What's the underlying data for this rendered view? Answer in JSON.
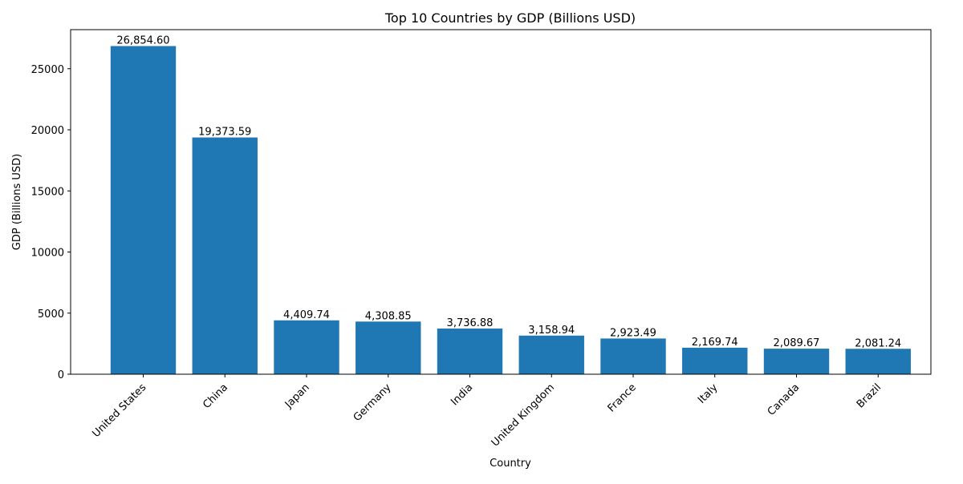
{
  "chart_data": {
    "type": "bar",
    "title": "Top 10 Countries by GDP (Billions USD)",
    "xlabel": "Country",
    "ylabel": "GDP (Billions USD)",
    "categories": [
      "United States",
      "China",
      "Japan",
      "Germany",
      "India",
      "United Kingdom",
      "France",
      "Italy",
      "Canada",
      "Brazil"
    ],
    "values": [
      26854.6,
      19373.59,
      4409.74,
      4308.85,
      3736.88,
      3158.94,
      2923.49,
      2169.74,
      2089.67,
      2081.24
    ],
    "data_labels": [
      "26,854.60",
      "19,373.59",
      "4,409.74",
      "4,308.85",
      "3,736.88",
      "3,158.94",
      "2,923.49",
      "2,169.74",
      "2,089.67",
      "2,081.24"
    ],
    "yticks": [
      0,
      5000,
      10000,
      15000,
      20000,
      25000
    ],
    "ylim": [
      0,
      28197.33
    ],
    "grid": false,
    "legend": "none",
    "bar_color": "#1f77b4"
  }
}
